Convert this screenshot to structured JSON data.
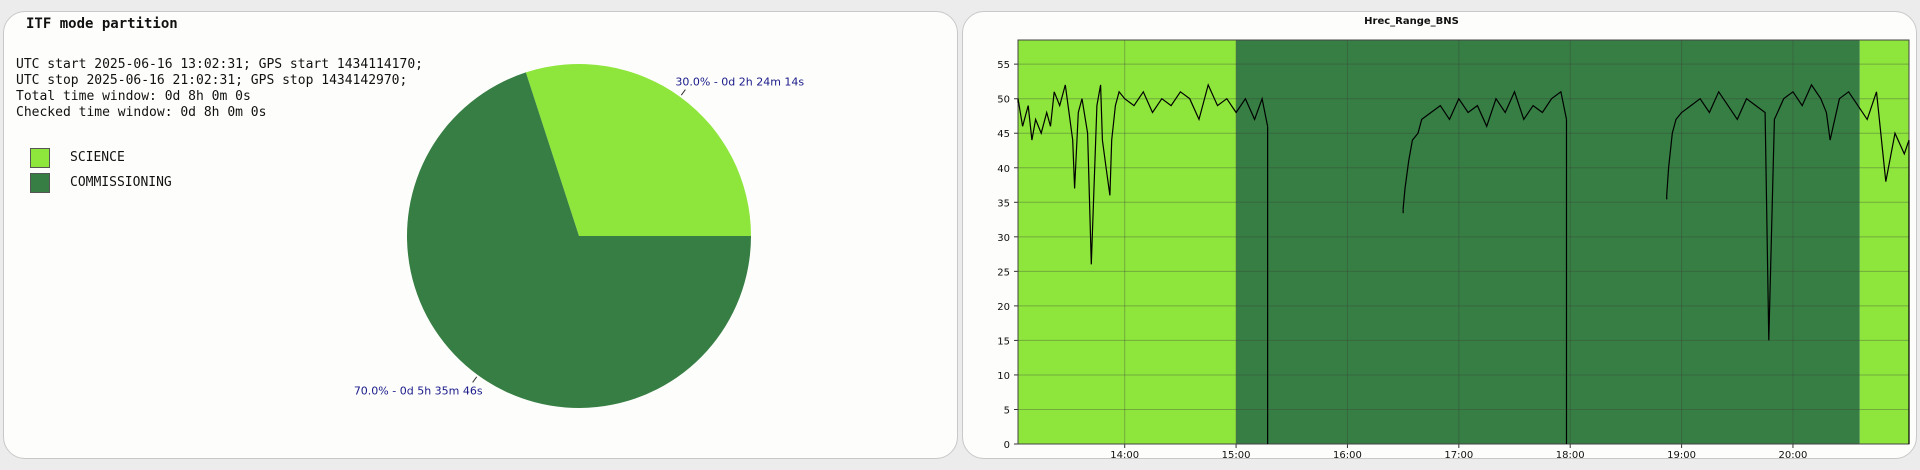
{
  "left": {
    "title": "ITF mode partition",
    "info": [
      "UTC start 2025-06-16 13:02:31; GPS start 1434114170;",
      "UTC stop 2025-06-16 21:02:31; GPS stop 1434142970;",
      "Total time window: 0d 8h 0m 0s",
      "Checked time window: 0d 8h 0m 0s"
    ],
    "legend": [
      {
        "label": "SCIENCE",
        "color": "#8ee63c"
      },
      {
        "label": "COMMISSIONING",
        "color": "#367e43"
      }
    ]
  },
  "colors": {
    "science": "#8ee63c",
    "commissioning": "#367e43",
    "label": "#1a1a8a",
    "trace": "#000000"
  },
  "chart_data": [
    {
      "type": "pie",
      "slices": [
        {
          "name": "SCIENCE",
          "value": 30.0,
          "label": "30.0% - 0d 2h 24m 14s",
          "color": "#8ee63c"
        },
        {
          "name": "COMMISSIONING",
          "value": 70.0,
          "label": "70.0% - 0d 5h 35m 46s",
          "color": "#367e43"
        }
      ]
    },
    {
      "type": "line",
      "title": "Hrec_Range_BNS",
      "xlabel": "",
      "ylabel": "",
      "x_ticks": [
        "14:00",
        "15:00",
        "16:00",
        "17:00",
        "18:00",
        "19:00",
        "20:00"
      ],
      "y_ticks": [
        "0",
        "5",
        "10",
        "15",
        "20",
        "25",
        "30",
        "35",
        "40",
        "45",
        "50",
        "55"
      ],
      "xlim": [
        "13:02:31",
        "21:02:31"
      ],
      "ylim": [
        0,
        58.5
      ],
      "grid": true,
      "background_segments": [
        {
          "mode": "SCIENCE",
          "start": "13:02:31",
          "end": "15:00"
        },
        {
          "mode": "COMMISSIONING",
          "start": "15:00",
          "end": "20:36"
        },
        {
          "mode": "SCIENCE",
          "start": "20:36",
          "end": "21:02:31"
        }
      ],
      "series": [
        {
          "segments": [
            {
              "x": [
                "13:02:31",
                "13:05",
                "13:08",
                "13:10",
                "13:12",
                "13:15",
                "13:18",
                "13:20",
                "13:22",
                "13:25",
                "13:28",
                "13:30",
                "13:32",
                "13:33",
                "13:35",
                "13:37",
                "13:40",
                "13:42",
                "13:45",
                "13:47",
                "13:48",
                "13:50",
                "13:52",
                "13:53",
                "13:55",
                "13:57",
                "14:00",
                "14:05",
                "14:10",
                "14:15",
                "14:20",
                "14:25",
                "14:30",
                "14:35",
                "14:40",
                "14:45",
                "14:50",
                "14:55",
                "15:00",
                "15:05",
                "15:10",
                "15:14",
                "15:17"
              ],
              "y": [
                50,
                46,
                49,
                44,
                47,
                45,
                48,
                46,
                51,
                49,
                52,
                48,
                44,
                37,
                48,
                50,
                45,
                26,
                49,
                52,
                44,
                40,
                36,
                44,
                49,
                51,
                50,
                49,
                51,
                48,
                50,
                49,
                51,
                50,
                47,
                52,
                49,
                50,
                48,
                50,
                47,
                50,
                46
              ]
            },
            {
              "x": [
                "16:30",
                "16:31",
                "16:33",
                "16:35",
                "16:38",
                "16:40",
                "16:45",
                "16:50",
                "16:55",
                "17:00",
                "17:05",
                "17:10",
                "17:15",
                "17:20",
                "17:25",
                "17:30",
                "17:35",
                "17:40",
                "17:45",
                "17:50",
                "17:55",
                "17:58"
              ],
              "y": [
                34,
                37,
                41,
                44,
                45,
                47,
                48,
                49,
                47,
                50,
                48,
                49,
                46,
                50,
                48,
                51,
                47,
                49,
                48,
                50,
                51,
                47
              ]
            },
            {
              "x": [
                "18:52",
                "18:53",
                "18:55",
                "18:57",
                "19:00",
                "19:05",
                "19:10",
                "19:15",
                "19:20",
                "19:25",
                "19:30",
                "19:35",
                "19:40",
                "19:45",
                "19:47",
                "19:50",
                "19:55",
                "20:00",
                "20:05",
                "20:10",
                "20:15",
                "20:18",
                "20:20",
                "20:25",
                "20:30",
                "20:35",
                "20:40",
                "20:45",
                "20:50",
                "20:55",
                "21:00",
                "21:02:31"
              ],
              "y": [
                36,
                40,
                45,
                47,
                48,
                49,
                50,
                48,
                51,
                49,
                47,
                50,
                49,
                48,
                15,
                47,
                50,
                51,
                49,
                52,
                50,
                48,
                44,
                50,
                51,
                49,
                47,
                51,
                38,
                45,
                42,
                44
              ]
            }
          ]
        }
      ]
    }
  ]
}
